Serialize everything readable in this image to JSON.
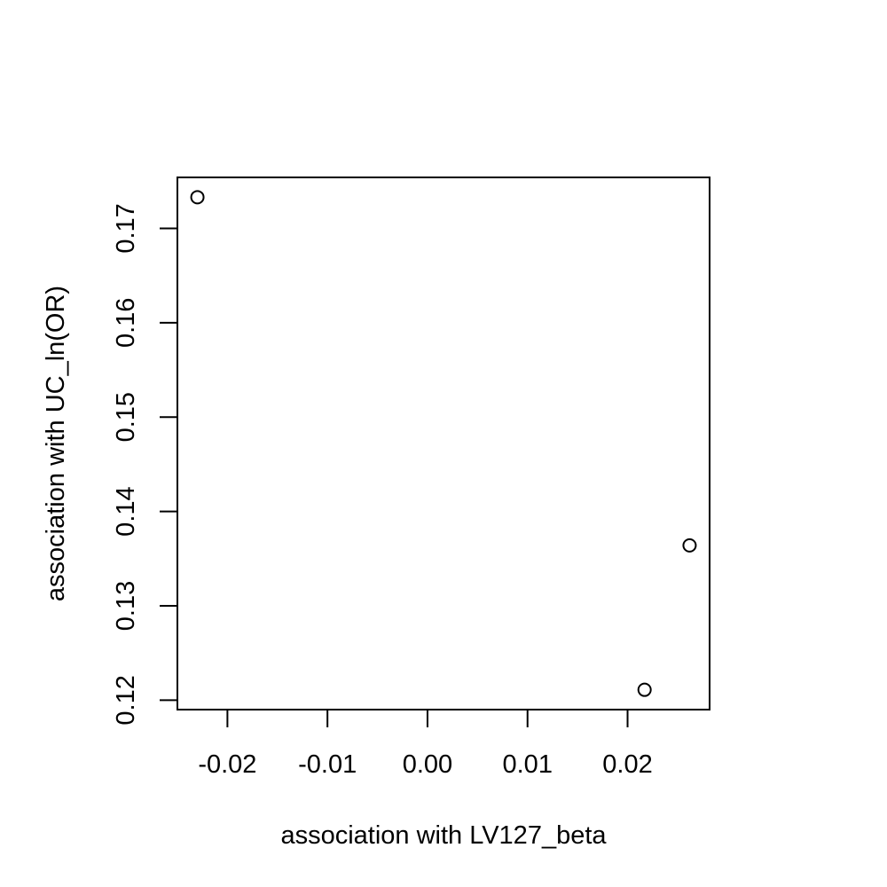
{
  "chart_data": {
    "type": "scatter",
    "xlabel": "association with LV127_beta",
    "ylabel": "association with UC_ln(OR)",
    "xlim": [
      -0.025,
      0.0282
    ],
    "ylim": [
      0.119,
      0.1754
    ],
    "x_ticks": [
      -0.02,
      -0.01,
      0.0,
      0.01,
      0.02
    ],
    "x_tick_labels": [
      "-0.02",
      "-0.01",
      "0.00",
      "0.01",
      "0.02"
    ],
    "y_ticks": [
      0.12,
      0.13,
      0.14,
      0.15,
      0.16,
      0.17
    ],
    "y_tick_labels": [
      "0.12",
      "0.13",
      "0.14",
      "0.15",
      "0.16",
      "0.17"
    ],
    "grid": false,
    "points": [
      {
        "x": -0.023,
        "y": 0.1733
      },
      {
        "x": 0.0217,
        "y": 0.1211
      },
      {
        "x": 0.0262,
        "y": 0.1364
      }
    ]
  }
}
